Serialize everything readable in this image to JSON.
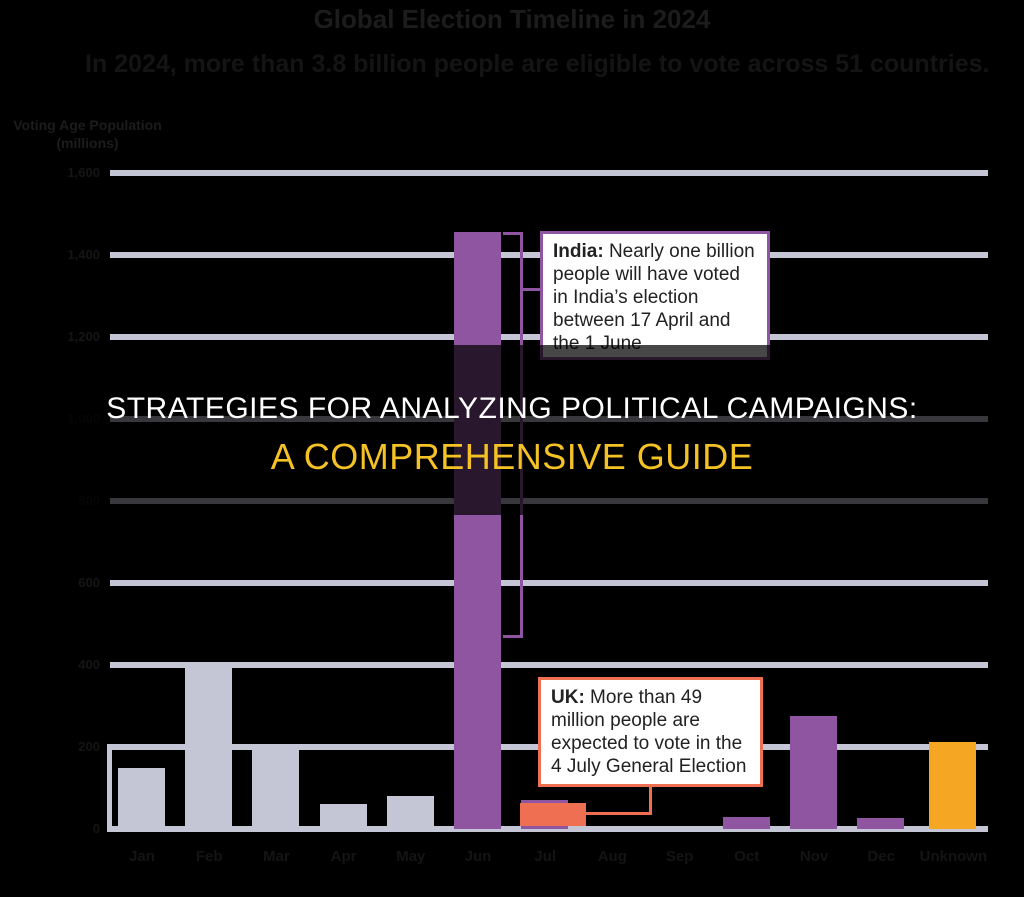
{
  "header": {
    "title": "Global Election Timeline in 2024",
    "subtitle": "In 2024, more than 3.8 billion people are eligible to vote across 51 countries."
  },
  "overlay": {
    "line1": "STRATEGIES FOR ANALYZING POLITICAL CAMPAIGNS:",
    "line2": "A COMPREHENSIVE GUIDE"
  },
  "callouts": {
    "india": {
      "label": "India:",
      "text": " Nearly one billion people will have voted in India’s election between 17 April and the 1 June"
    },
    "uk": {
      "label": "UK:",
      "text": " More than 49 million people are expected to vote in the 4 July General Election"
    }
  },
  "colors": {
    "past": "#c4c6d6",
    "upcoming": "#8f55a0",
    "uk": "#ef6f52",
    "unknown": "#f5a623",
    "grid": "#c4c6d6",
    "headline_accent": "#f5c226"
  },
  "chart_data": {
    "type": "bar",
    "title": "Global Election Timeline in 2024",
    "subtitle": "In 2024, more than 3.8 billion people are eligible to vote across 51 countries.",
    "xlabel": "",
    "ylabel": "Voting Age Population (millions)",
    "ylim": [
      0,
      1600
    ],
    "yticks": [
      "0",
      "200",
      "400",
      "600",
      "800",
      "1,000",
      "1,200",
      "1,400",
      "1,600"
    ],
    "grid": true,
    "categories": [
      "Jan",
      "Feb",
      "Mar",
      "Apr",
      "May",
      "Jun",
      "Jul",
      "Aug",
      "Sep",
      "Oct",
      "Nov",
      "Dec",
      "Unknown"
    ],
    "series": [
      {
        "name": "Voting Age Population",
        "values": [
          150,
          400,
          200,
          60,
          80,
          1456,
          70,
          0,
          0,
          29,
          276,
          27,
          212
        ]
      },
      {
        "name": "UK (July)",
        "values": [
          0,
          0,
          0,
          0,
          0,
          0,
          63,
          0,
          0,
          0,
          0,
          0,
          0
        ]
      }
    ],
    "bar_colors": [
      "#c4c6d6",
      "#c4c6d6",
      "#c4c6d6",
      "#c4c6d6",
      "#c4c6d6",
      "#8f55a0",
      "#8f55a0",
      "#8f55a0",
      "#8f55a0",
      "#8f55a0",
      "#8f55a0",
      "#8f55a0",
      "#f5a623"
    ],
    "annotations": [
      "India: Nearly one billion people will have voted in India’s election between 17 April and the 1 June",
      "UK: More than 49 million people are expected to vote in the 4 July General Election"
    ]
  }
}
